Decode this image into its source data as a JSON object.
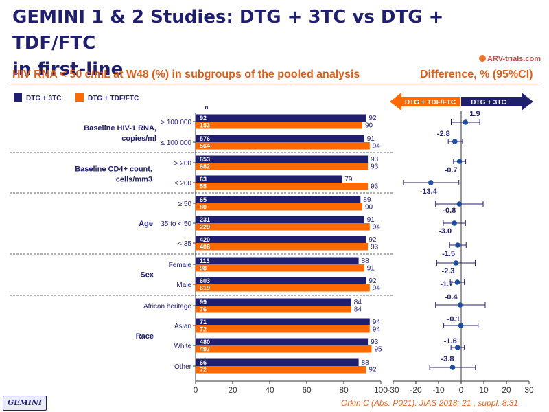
{
  "header": {
    "title_line1": "GEMINI 1 & 2 Studies: DTG + 3TC vs DTG + TDF/FTC",
    "title_line2": "in first-line",
    "logo": "ARV-trials.com",
    "subtitle": "HIV RNA < 50 c/mL at W48 (%) in subgroups of the pooled analysis",
    "difference_title": "Difference, % (95%CI)"
  },
  "legend": {
    "dtg3tc": "DTG + 3TC",
    "tdf": "DTG + TDF/FTC"
  },
  "footer": {
    "badge": "GEMINI",
    "citation": "Orkin C (Abs. P021). JIAS 2018; 21 , suppl. 8:31"
  },
  "colors": {
    "dtg3tc": "#1f1f6e",
    "tdf": "#ff6a00",
    "title": "#1f1f6e",
    "accent": "#d9601a"
  },
  "chart_data": [
    {
      "type": "bar",
      "orientation": "horizontal",
      "n_label": "n",
      "xlim": [
        0,
        100
      ],
      "xticks": [
        0,
        20,
        40,
        60,
        80,
        100
      ],
      "groups": [
        {
          "label": "Baseline HIV-1 RNA, copies/ml",
          "rows": [
            {
              "category": "> 100 000",
              "dtg3tc": {
                "n": "92",
                "value": 92
              },
              "tdf": {
                "n": "153",
                "value": 90
              }
            },
            {
              "category": "≤ 100 000",
              "dtg3tc": {
                "n": "576",
                "value": 91
              },
              "tdf": {
                "n": "564",
                "value": 94
              }
            }
          ]
        },
        {
          "label": "Baseline CD4+ count, cells/mm3",
          "rows": [
            {
              "category": "> 200",
              "dtg3tc": {
                "n": "653",
                "value": 93
              },
              "tdf": {
                "n": "682",
                "value": 93
              }
            },
            {
              "category": "≤ 200",
              "dtg3tc": {
                "n": "63",
                "value": 79
              },
              "tdf": {
                "n": "55",
                "value": 93
              }
            }
          ]
        },
        {
          "label": "Age",
          "rows": [
            {
              "category": "≥ 50",
              "dtg3tc": {
                "n": "65",
                "value": 89
              },
              "tdf": {
                "n": "80",
                "value": 90
              }
            },
            {
              "category": "35 to < 50",
              "dtg3tc": {
                "n": "231",
                "value": 91
              },
              "tdf": {
                "n": "229",
                "value": 94
              }
            },
            {
              "category": "< 35",
              "dtg3tc": {
                "n": "420",
                "value": 92
              },
              "tdf": {
                "n": "408",
                "value": 93
              }
            }
          ]
        },
        {
          "label": "Sex",
          "rows": [
            {
              "category": "Female",
              "dtg3tc": {
                "n": "113",
                "value": 88
              },
              "tdf": {
                "n": "98",
                "value": 91
              }
            },
            {
              "category": "Male",
              "dtg3tc": {
                "n": "603",
                "value": 92
              },
              "tdf": {
                "n": "619",
                "value": 94
              }
            }
          ]
        },
        {
          "label": "Race",
          "rows": [
            {
              "category": "African heritage",
              "dtg3tc": {
                "n": "99",
                "value": 84
              },
              "tdf": {
                "n": "76",
                "value": 84
              }
            },
            {
              "category": "Asian",
              "dtg3tc": {
                "n": "71",
                "value": 94
              },
              "tdf": {
                "n": "72",
                "value": 94
              }
            },
            {
              "category": "White",
              "dtg3tc": {
                "n": "480",
                "value": 93
              },
              "tdf": {
                "n": "497",
                "value": 95
              }
            },
            {
              "category": "Other",
              "dtg3tc": {
                "n": "66",
                "value": 88
              },
              "tdf": {
                "n": "72",
                "value": 92
              }
            }
          ]
        }
      ]
    },
    {
      "type": "scatter",
      "subtype": "forest",
      "title": "Difference, % (95%CI)",
      "arrow_left_label": "DTG + TDF/FTC",
      "arrow_right_label": "DTG + 3TC",
      "xlim": [
        -30,
        30
      ],
      "xticks": [
        -30,
        -20,
        -10,
        0,
        10,
        20,
        30
      ],
      "points": [
        {
          "label": "1.9",
          "value": 1.9,
          "ci": [
            -4.4,
            8.2
          ]
        },
        {
          "label": "-2.8",
          "value": -2.8,
          "ci": [
            -5.7,
            0.6
          ]
        },
        {
          "label": "-0.7",
          "value": -0.7,
          "ci": [
            -3.4,
            2.0
          ]
        },
        {
          "label": "-13.4",
          "value": -13.4,
          "ci": [
            -25.5,
            -1.0
          ]
        },
        {
          "label": "-0.8",
          "value": -0.8,
          "ci": [
            -11.3,
            9.7
          ]
        },
        {
          "label": "-3.0",
          "value": -3.0,
          "ci": [
            -7.9,
            1.9
          ]
        },
        {
          "label": "-1.5",
          "value": -1.5,
          "ci": [
            -5.1,
            2.2
          ]
        },
        {
          "label": "-2.3",
          "value": -2.3,
          "ci": [
            -10.8,
            6.2
          ]
        },
        {
          "label": "-1.7",
          "value": -1.7,
          "ci": [
            -4.8,
            1.4
          ]
        },
        {
          "label": "-0.4",
          "value": -0.4,
          "ci": [
            -11.3,
            10.6
          ]
        },
        {
          "label": "-0.1",
          "value": -0.1,
          "ci": [
            -7.7,
            7.5
          ]
        },
        {
          "label": "-1.6",
          "value": -1.6,
          "ci": [
            -4.5,
            1.4
          ]
        },
        {
          "label": "-3.8",
          "value": -3.8,
          "ci": [
            -13.9,
            6.3
          ]
        }
      ]
    }
  ]
}
